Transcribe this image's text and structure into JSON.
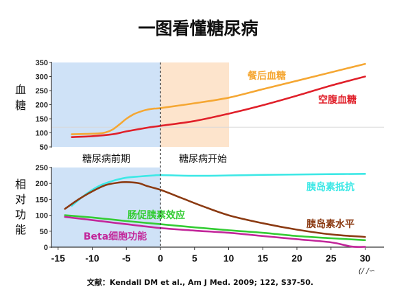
{
  "title": "一图看懂糖尿病",
  "citation": "文献：Kendall DM et al., Am J Med. 2009; 122, S37-50.",
  "watermark": "(∕ ∕∽",
  "colors": {
    "prediabetes_bg": "#cfe2f7",
    "diabetes_bg": "#fde4cc",
    "postprandial": "#f5a733",
    "fasting": "#e0202a",
    "insulin_resistance": "#3de8e6",
    "insulin_level": "#8b3a12",
    "incretin": "#33cc33",
    "beta_cell": "#c2269a"
  },
  "chart_data": [
    {
      "type": "line",
      "ylabel": "血糖",
      "ylim": [
        50,
        350
      ],
      "yticks": [
        "350",
        "300",
        "250",
        "200",
        "150",
        "100",
        "50"
      ],
      "xlim": [
        -16,
        31
      ],
      "reference_line": 120,
      "series": [
        {
          "name": "餐后血糖",
          "x": [
            -13,
            -11,
            -9,
            -8,
            -7,
            -6,
            -5,
            -4,
            -3,
            -2,
            -1,
            0,
            5,
            10,
            15,
            20,
            25,
            30
          ],
          "values": [
            95,
            96,
            98,
            102,
            112,
            130,
            150,
            165,
            175,
            182,
            186,
            188,
            205,
            225,
            255,
            285,
            315,
            345
          ]
        },
        {
          "name": "空腹血糖",
          "x": [
            -13,
            -10,
            -7,
            -5,
            -2,
            0,
            5,
            10,
            15,
            20,
            25,
            30
          ],
          "values": [
            85,
            88,
            95,
            105,
            118,
            125,
            142,
            168,
            198,
            232,
            268,
            300
          ]
        }
      ]
    },
    {
      "type": "line",
      "ylabel": "相对功能",
      "ylim": [
        0,
        250
      ],
      "yticks": [
        "250",
        "200",
        "150",
        "100",
        "50",
        "0"
      ],
      "xlim": [
        -16,
        31
      ],
      "xticks": [
        "-15",
        "-10",
        "-5",
        "0",
        "5",
        "10",
        "15",
        "20",
        "25",
        "30"
      ],
      "phases": [
        "糖尿病前期",
        "糖尿病开始"
      ],
      "series": [
        {
          "name": "胰岛素抵抗",
          "x": [
            -13,
            -11,
            -9,
            -7,
            -5,
            -3,
            -1,
            0,
            5,
            10,
            15,
            20,
            25,
            30
          ],
          "values": [
            130,
            165,
            192,
            208,
            218,
            222,
            225,
            226,
            224,
            225,
            227,
            228,
            229,
            230
          ]
        },
        {
          "name": "胰岛素水平",
          "x": [
            -14,
            -12,
            -10,
            -8,
            -6,
            -5,
            -4,
            -3,
            -2,
            0,
            3,
            6,
            10,
            15,
            20,
            25,
            30
          ],
          "values": [
            120,
            150,
            175,
            195,
            203,
            204,
            203,
            200,
            192,
            180,
            155,
            130,
            100,
            75,
            55,
            40,
            32
          ]
        },
        {
          "name": "肠促胰素效应",
          "x": [
            -14,
            -10,
            -5,
            0,
            5,
            10,
            15,
            20,
            25,
            30
          ],
          "values": [
            100,
            93,
            82,
            72,
            62,
            53,
            45,
            35,
            28,
            22
          ]
        },
        {
          "name": "Beta细胞功能",
          "x": [
            -14,
            -10,
            -5,
            0,
            5,
            10,
            15,
            20,
            25,
            28,
            30
          ],
          "values": [
            95,
            85,
            72,
            60,
            52,
            45,
            35,
            25,
            15,
            2,
            1
          ]
        }
      ]
    }
  ]
}
